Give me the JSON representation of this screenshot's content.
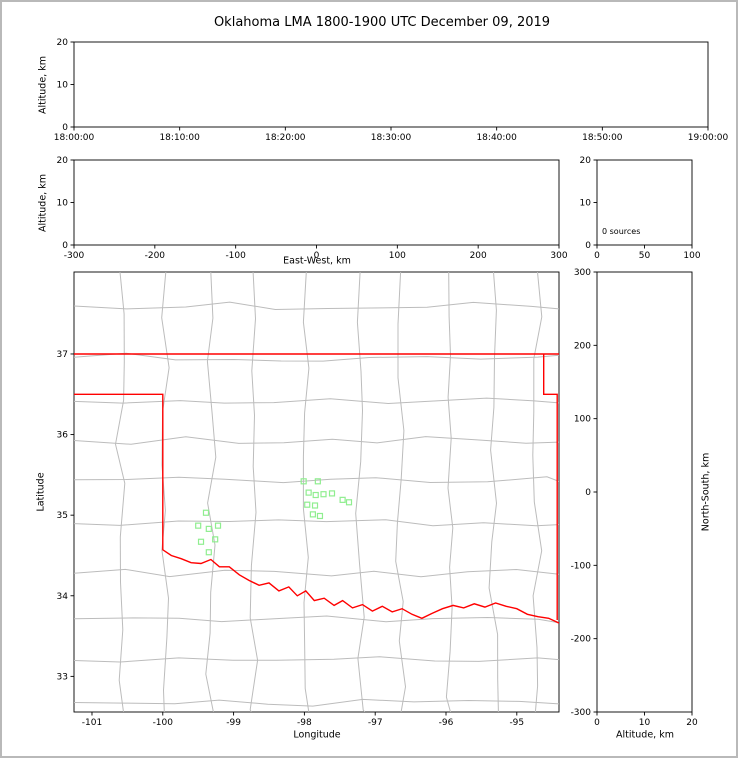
{
  "title": "Oklahoma LMA 1800-1900 UTC December 09, 2019",
  "colors": {
    "figure_border": "#b9b9b9",
    "panel_border": "#000000",
    "county_lines": "#bcbcbc",
    "state_border": "#ff0000",
    "stations": "#90ee90"
  },
  "chart_data": {
    "type": "scatter",
    "panels": {
      "time_height": {
        "ylabel": "Altitude, km",
        "yticks": [
          0,
          10,
          20
        ],
        "ylim": [
          0,
          20
        ],
        "xticks": [
          "18:00:00",
          "18:10:00",
          "18:20:00",
          "18:30:00",
          "18:40:00",
          "18:50:00",
          "19:00:00"
        ],
        "points": []
      },
      "ew_height": {
        "xlabel": "East-West, km",
        "ylabel": "Altitude, km",
        "xticks": [
          -300,
          -200,
          -100,
          0,
          100,
          200,
          300
        ],
        "xlim": [
          -300,
          300
        ],
        "yticks": [
          0,
          10,
          20
        ],
        "ylim": [
          0,
          20
        ],
        "points": []
      },
      "alt_histogram": {
        "annotation": "0 sources",
        "xticks": [
          0,
          50,
          100
        ],
        "xlim": [
          0,
          100
        ],
        "yticks": [
          0,
          10,
          20
        ],
        "ylim": [
          0,
          20
        ],
        "values": []
      },
      "plan_view": {
        "xlabel": "Longitude",
        "ylabel": "Latitude",
        "xticks": [
          -101,
          -100,
          -99,
          -98,
          -97,
          -96,
          -95
        ],
        "xlim": [
          -101.254,
          -94.404
        ],
        "yticks": [
          33,
          34,
          35,
          36,
          37
        ],
        "ylim": [
          32.558,
          38.017
        ],
        "stations": [
          [
            -98.01,
            35.42
          ],
          [
            -97.81,
            35.42
          ],
          [
            -97.94,
            35.28
          ],
          [
            -97.84,
            35.25
          ],
          [
            -97.73,
            35.26
          ],
          [
            -97.61,
            35.27
          ],
          [
            -97.96,
            35.13
          ],
          [
            -97.85,
            35.12
          ],
          [
            -97.46,
            35.19
          ],
          [
            -97.37,
            35.16
          ],
          [
            -97.88,
            35.01
          ],
          [
            -97.78,
            34.99
          ],
          [
            -99.39,
            35.03
          ],
          [
            -99.5,
            34.87
          ],
          [
            -99.22,
            34.87
          ],
          [
            -99.35,
            34.83
          ],
          [
            -99.46,
            34.67
          ],
          [
            -99.26,
            34.7
          ],
          [
            -99.35,
            34.54
          ]
        ],
        "state_border": [
          [
            [
              -101.26,
              37.0
            ],
            [
              -94.4,
              37.0
            ]
          ],
          [
            [
              -101.26,
              36.5
            ],
            [
              -100.0,
              36.5
            ],
            [
              -100.0,
              34.57
            ],
            [
              -99.88,
              34.5
            ],
            [
              -99.74,
              34.46
            ],
            [
              -99.6,
              34.41
            ],
            [
              -99.46,
              34.4
            ],
            [
              -99.32,
              34.45
            ],
            [
              -99.2,
              34.36
            ],
            [
              -99.06,
              34.36
            ],
            [
              -98.92,
              34.26
            ],
            [
              -98.78,
              34.19
            ],
            [
              -98.64,
              34.13
            ],
            [
              -98.5,
              34.16
            ],
            [
              -98.36,
              34.06
            ],
            [
              -98.22,
              34.11
            ],
            [
              -98.1,
              34.0
            ],
            [
              -97.98,
              34.06
            ],
            [
              -97.86,
              33.94
            ],
            [
              -97.72,
              33.97
            ],
            [
              -97.58,
              33.88
            ],
            [
              -97.46,
              33.94
            ],
            [
              -97.32,
              33.85
            ],
            [
              -97.18,
              33.89
            ],
            [
              -97.04,
              33.81
            ],
            [
              -96.9,
              33.87
            ],
            [
              -96.76,
              33.8
            ],
            [
              -96.62,
              33.84
            ],
            [
              -96.48,
              33.77
            ],
            [
              -96.34,
              33.72
            ],
            [
              -96.2,
              33.78
            ],
            [
              -96.05,
              33.84
            ],
            [
              -95.9,
              33.88
            ],
            [
              -95.75,
              33.85
            ],
            [
              -95.6,
              33.9
            ],
            [
              -95.45,
              33.86
            ],
            [
              -95.3,
              33.91
            ],
            [
              -95.15,
              33.87
            ],
            [
              -95.0,
              33.84
            ],
            [
              -94.85,
              33.77
            ],
            [
              -94.7,
              33.74
            ],
            [
              -94.55,
              33.72
            ],
            [
              -94.4,
              33.66
            ]
          ],
          [
            [
              -94.62,
              37.0
            ],
            [
              -94.62,
              36.5
            ],
            [
              -94.43,
              36.5
            ],
            [
              -94.43,
              33.7
            ]
          ]
        ]
      },
      "ns_height": {
        "xlabel": "Altitude, km",
        "right_label": "North-South, km",
        "xticks": [
          0,
          10,
          20
        ],
        "xlim": [
          0,
          20
        ],
        "yticks": [
          -300,
          -200,
          -100,
          0,
          100,
          200,
          300
        ],
        "ylim": [
          -300,
          300
        ],
        "points": []
      }
    }
  }
}
